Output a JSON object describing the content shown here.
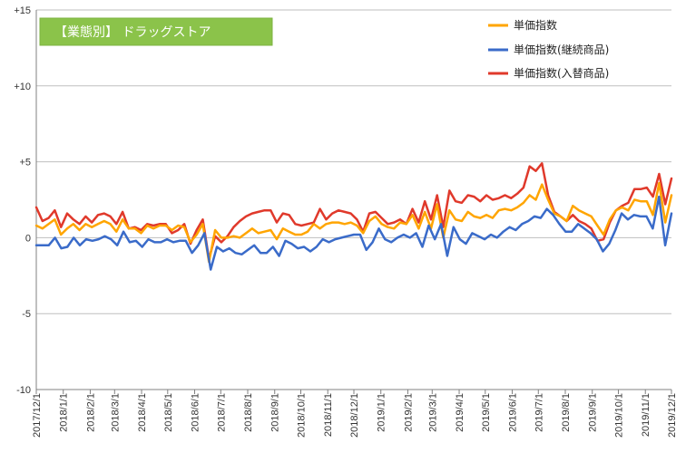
{
  "chart_data": {
    "type": "line",
    "title": "【業態別】 ドラッグストア",
    "xlabel": "",
    "ylabel": "",
    "ylim": [
      -10,
      15
    ],
    "yticks": [
      {
        "value": 15,
        "label": "+15"
      },
      {
        "value": 10,
        "label": "+10"
      },
      {
        "value": 5,
        "label": "+5"
      },
      {
        "value": 0,
        "label": "0"
      },
      {
        "value": -5,
        "label": "-5"
      },
      {
        "value": -10,
        "label": "-10"
      }
    ],
    "x_start": "2017/12/1",
    "x_end": "2019/12/1",
    "xticks": [
      "2017/12/1",
      "2018/1/1",
      "2018/2/1",
      "2018/3/1",
      "2018/4/1",
      "2018/5/1",
      "2018/6/1",
      "2018/7/1",
      "2018/8/1",
      "2018/9/1",
      "2018/10/1",
      "2018/11/1",
      "2018/12/1",
      "2019/1/1",
      "2019/2/1",
      "2019/3/1",
      "2019/4/1",
      "2019/5/1",
      "2019/6/1",
      "2019/7/1",
      "2019/8/1",
      "2019/9/1",
      "2019/10/1",
      "2019/11/1",
      "2019/12/1"
    ],
    "grid": {
      "horizontal": true,
      "vertical": false
    },
    "legend": "top-right",
    "series": [
      {
        "name": "単価指数",
        "color": "#FFA500",
        "values": [
          0.8,
          0.6,
          0.9,
          1.2,
          0.2,
          0.6,
          0.9,
          0.5,
          0.9,
          0.7,
          0.9,
          1.1,
          0.9,
          0.4,
          1.2,
          0.6,
          0.6,
          0.3,
          0.8,
          0.6,
          0.8,
          0.8,
          0.5,
          0.8,
          0.7,
          -0.3,
          0.2,
          0.9,
          -1.6,
          0.5,
          0.0,
          0.0,
          0.1,
          0.0,
          0.3,
          0.6,
          0.3,
          0.4,
          0.5,
          -0.1,
          0.6,
          0.4,
          0.2,
          0.2,
          0.4,
          0.9,
          0.6,
          0.9,
          1.0,
          1.0,
          0.9,
          1.0,
          0.8,
          0.3,
          1.1,
          1.4,
          0.9,
          0.7,
          0.6,
          1.0,
          0.9,
          1.5,
          0.6,
          1.7,
          0.6,
          2.2,
          0.0,
          1.8,
          1.2,
          1.1,
          1.7,
          1.4,
          1.3,
          1.5,
          1.3,
          1.8,
          1.9,
          1.8,
          2.0,
          2.3,
          2.8,
          2.5,
          3.5,
          2.5,
          1.6,
          1.4,
          1.1,
          2.1,
          1.8,
          1.6,
          1.4,
          0.8,
          0.2,
          1.2,
          1.8,
          2.0,
          1.8,
          2.5,
          2.4,
          2.4,
          1.5,
          3.6,
          1.0,
          2.8
        ]
      },
      {
        "name": "単価指数(継続商品)",
        "color": "#3A6BC9",
        "values": [
          -0.5,
          -0.5,
          -0.5,
          0.0,
          -0.7,
          -0.6,
          0.0,
          -0.5,
          -0.1,
          -0.2,
          -0.1,
          0.1,
          -0.1,
          -0.5,
          0.4,
          -0.3,
          -0.2,
          -0.6,
          -0.1,
          -0.3,
          -0.3,
          -0.1,
          -0.3,
          -0.2,
          -0.2,
          -1.0,
          -0.5,
          0.3,
          -2.1,
          -0.6,
          -0.9,
          -0.7,
          -1.0,
          -1.1,
          -0.8,
          -0.5,
          -1.0,
          -1.0,
          -0.6,
          -1.2,
          -0.2,
          -0.4,
          -0.7,
          -0.6,
          -0.9,
          -0.6,
          -0.1,
          -0.3,
          -0.1,
          0.0,
          0.1,
          0.2,
          0.2,
          -0.8,
          -0.3,
          0.6,
          -0.1,
          -0.3,
          0.0,
          0.2,
          0.0,
          0.3,
          -0.6,
          0.8,
          -0.1,
          0.9,
          -1.2,
          0.7,
          -0.1,
          -0.4,
          0.3,
          0.1,
          -0.1,
          0.2,
          0.0,
          0.4,
          0.7,
          0.5,
          0.9,
          1.1,
          1.4,
          1.3,
          1.9,
          1.5,
          0.9,
          0.4,
          0.4,
          0.9,
          0.6,
          0.3,
          -0.1,
          -0.9,
          -0.4,
          0.5,
          1.6,
          1.2,
          1.5,
          1.4,
          1.4,
          0.6,
          2.7,
          -0.5,
          1.6
        ]
      },
      {
        "name": "単価指数(入替商品)",
        "color": "#E0392B",
        "values": [
          2.0,
          1.1,
          1.3,
          1.8,
          0.7,
          1.6,
          1.2,
          0.9,
          1.4,
          1.0,
          1.5,
          1.6,
          1.4,
          0.9,
          1.7,
          0.6,
          0.7,
          0.5,
          0.9,
          0.8,
          0.9,
          0.9,
          0.3,
          0.5,
          0.9,
          -0.4,
          0.5,
          1.2,
          -1.4,
          0.1,
          -0.3,
          0.1,
          0.7,
          1.1,
          1.4,
          1.6,
          1.7,
          1.8,
          1.8,
          1.0,
          1.6,
          1.5,
          0.9,
          0.8,
          0.9,
          1.0,
          1.9,
          1.2,
          1.6,
          1.8,
          1.7,
          1.6,
          1.2,
          0.4,
          1.6,
          1.7,
          1.3,
          0.9,
          1.0,
          1.2,
          0.9,
          1.9,
          1.0,
          2.4,
          1.2,
          2.8,
          0.7,
          3.1,
          2.4,
          2.3,
          2.8,
          2.7,
          2.4,
          2.8,
          2.5,
          2.6,
          2.8,
          2.6,
          2.9,
          3.3,
          4.7,
          4.4,
          4.9,
          2.8,
          1.7,
          1.4,
          1.1,
          1.5,
          1.1,
          0.9,
          0.6,
          -0.2,
          -0.1,
          1.0,
          1.8,
          2.1,
          2.3,
          3.2,
          3.2,
          3.3,
          2.7,
          4.2,
          2.2,
          3.9
        ]
      }
    ]
  }
}
